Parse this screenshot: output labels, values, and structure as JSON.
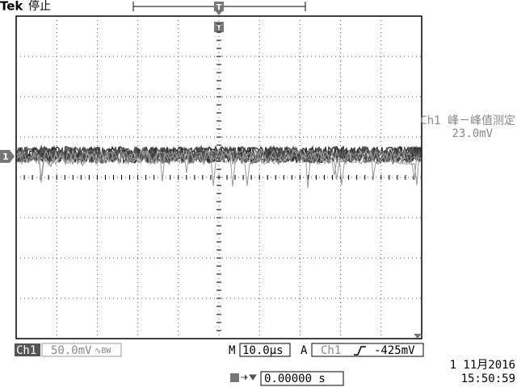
{
  "header": {
    "brand": "Tek",
    "status": "停止"
  },
  "markers": {
    "trigger_position": "T",
    "trigger_level": "T",
    "channel": "1"
  },
  "measurement": {
    "label": "Ch1 峰－峰值测定",
    "value": "23.0mV"
  },
  "footer": {
    "channel": "Ch1",
    "scale": "50.0mV",
    "bandwidth": "∿BW",
    "timebase_prefix": "M",
    "timebase": "10.0µs",
    "trigger_prefix": "A",
    "trigger_channel": "Ch1",
    "trigger_level": "-425mV",
    "date": "1 11月2016",
    "time": "15:50:59",
    "position": "0.00000 s"
  }
}
